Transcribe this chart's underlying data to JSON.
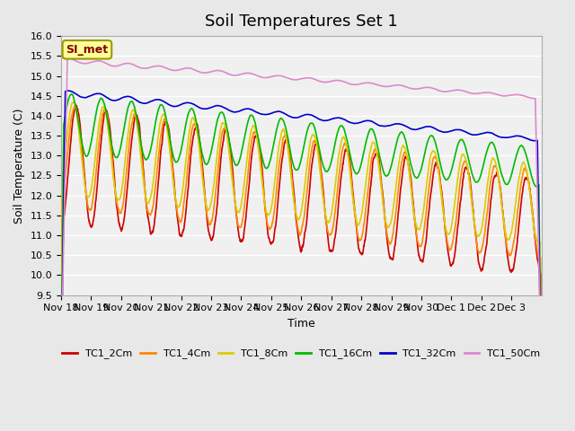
{
  "title": "Soil Temperatures Set 1",
  "xlabel": "Time",
  "ylabel": "Soil Temperature (C)",
  "ylim": [
    9.5,
    16.0
  ],
  "yticks": [
    9.5,
    10.0,
    10.5,
    11.0,
    11.5,
    12.0,
    12.5,
    13.0,
    13.5,
    14.0,
    14.5,
    15.0,
    15.5,
    16.0
  ],
  "xtick_labels": [
    "Nov 18",
    "Nov 19",
    "Nov 20",
    "Nov 21",
    "Nov 22",
    "Nov 23",
    "Nov 24",
    "Nov 25",
    "Nov 26",
    "Nov 27",
    "Nov 28",
    "Nov 29",
    "Nov 30",
    "Dec 1",
    "Dec 2",
    "Dec 3"
  ],
  "series_colors": [
    "#cc0000",
    "#ff8800",
    "#ddcc00",
    "#00bb00",
    "#0000cc",
    "#dd88cc"
  ],
  "series_labels": [
    "TC1_2Cm",
    "TC1_4Cm",
    "TC1_8Cm",
    "TC1_16Cm",
    "TC1_32Cm",
    "TC1_50Cm"
  ],
  "annotation_text": "SI_met",
  "annotation_bg": "#ffff99",
  "annotation_border": "#999900",
  "bg_color": "#e8e8e8",
  "plot_bg": "#f0f0f0",
  "grid_color": "#ffffff",
  "linewidth": 1.2,
  "title_fontsize": 13,
  "label_fontsize": 9,
  "tick_fontsize": 8
}
